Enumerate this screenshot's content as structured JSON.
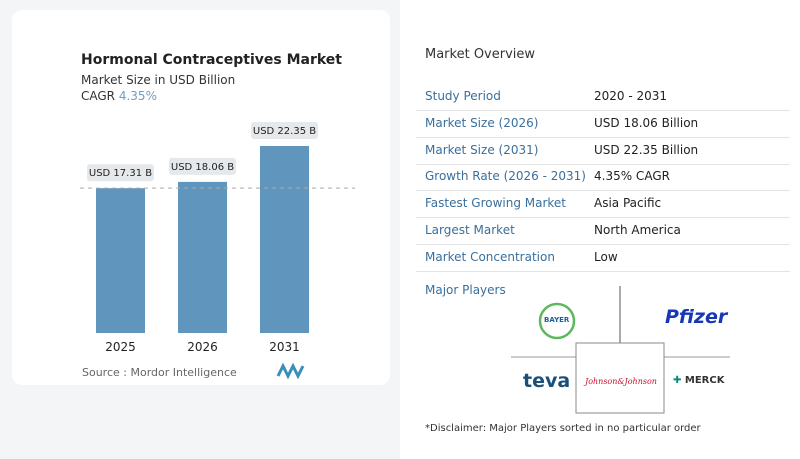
{
  "chart_data": {
    "type": "bar",
    "title": "Hormonal Contraceptives Market",
    "subtitle": "Market Size in USD Billion",
    "cagr_label": "CAGR",
    "cagr_value": "4.35%",
    "categories": [
      "2025",
      "2026",
      "2031"
    ],
    "values": [
      17.31,
      18.06,
      22.35
    ],
    "data_labels": [
      "USD 17.31 B",
      "USD 18.06 B",
      "USD 22.35 B"
    ],
    "color": "#6095bd",
    "reference_line": "dashed at 2025 value",
    "source": "Source :  Mordor Intelligence"
  },
  "overview": {
    "title": "Market Overview",
    "rows": [
      {
        "label": "Study Period",
        "value": "2020 - 2031"
      },
      {
        "label": "Market Size (2026)",
        "value": "USD 18.06 Billion"
      },
      {
        "label": "Market Size (2031)",
        "value": "USD 22.35 Billion"
      },
      {
        "label": "Growth Rate (2026 - 2031)",
        "value": "4.35% CAGR"
      },
      {
        "label": "Fastest Growing Market",
        "value": "Asia Pacific"
      },
      {
        "label": "Largest Market",
        "value": "North America"
      },
      {
        "label": "Market Concentration",
        "value": "Low"
      }
    ],
    "major_players_label": "Major Players",
    "players": [
      "BAYER",
      "Pfizer",
      "teva",
      "Johnson&Johnson",
      "MERCK"
    ],
    "disclaimer": "*Disclaimer: Major Players sorted in no particular order"
  }
}
